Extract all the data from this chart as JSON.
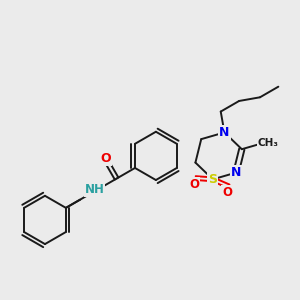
{
  "background_color": "#ebebeb",
  "bond_color": "#1a1a1a",
  "N_color": "#0000ee",
  "S_color": "#cccc00",
  "O_color": "#ee0000",
  "H_color": "#2aa0a0",
  "figsize": [
    3.0,
    3.0
  ],
  "dpi": 100,
  "xlim": [
    0,
    10
  ],
  "ylim": [
    0,
    10
  ]
}
